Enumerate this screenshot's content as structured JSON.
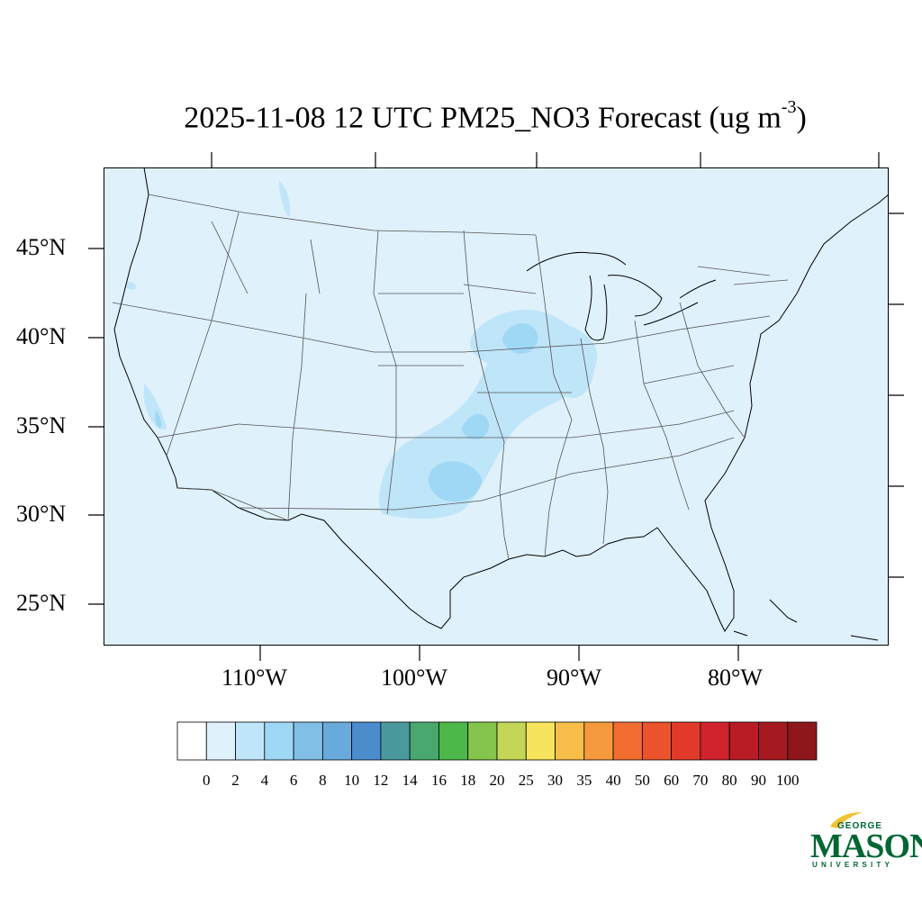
{
  "title": {
    "main": "2025-11-08 12 UTC PM25_NO3 Forecast (ug m",
    "sup": "-3",
    "close": ")"
  },
  "axes": {
    "lat_labels": [
      "45°N",
      "40°N",
      "35°N",
      "30°N",
      "25°N"
    ],
    "lon_labels": [
      "110°W",
      "100°W",
      "90°W",
      "80°W"
    ]
  },
  "colorbar": {
    "labels": [
      "0",
      "2",
      "4",
      "6",
      "8",
      "10",
      "12",
      "14",
      "16",
      "18",
      "20",
      "25",
      "30",
      "35",
      "40",
      "50",
      "60",
      "70",
      "80",
      "90",
      "100"
    ],
    "colors": [
      "#ffffff",
      "#dff1fb",
      "#bfe5f9",
      "#9fd8f5",
      "#82bfe6",
      "#69a9dc",
      "#4b8ccc",
      "#4a9a9d",
      "#48a86f",
      "#4db84a",
      "#86c54d",
      "#c3d657",
      "#f6e55c",
      "#f7bf4a",
      "#f59a3c",
      "#f26d2f",
      "#ea532c",
      "#e13a2b",
      "#d1232d",
      "#ba1c26",
      "#a51a21",
      "#8e171b"
    ]
  },
  "map": {
    "background": "#dff1fb",
    "plume_colors": [
      "#bfe5f9",
      "#9fd8f5",
      "#82bfe6"
    ]
  },
  "logo": {
    "line1": "GEORGE",
    "line2": "MASON",
    "line3": "UNIVERSITY",
    "color": "#006633",
    "accent": "#f2c230"
  }
}
